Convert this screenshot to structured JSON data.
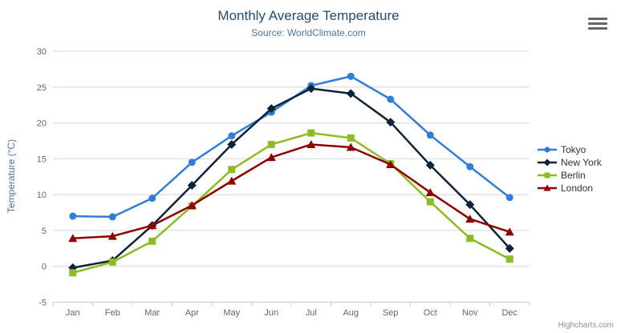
{
  "export_menu": {
    "icon": "hamburger-icon"
  },
  "credits": {
    "label": "Highcharts.com"
  },
  "chart_data": {
    "type": "line",
    "title": "Monthly Average Temperature",
    "subtitle": "Source: WorldClimate.com",
    "categories": [
      "Jan",
      "Feb",
      "Mar",
      "Apr",
      "May",
      "Jun",
      "Jul",
      "Aug",
      "Sep",
      "Oct",
      "Nov",
      "Dec"
    ],
    "xlabel": "",
    "ylabel": "Temperature (°C)",
    "ylim": [
      -5,
      30
    ],
    "ytick_step": 5,
    "grid": true,
    "legend_position": "right",
    "series": [
      {
        "name": "Tokyo",
        "color": "#2f7ed8",
        "marker": "circle",
        "values": [
          7.0,
          6.9,
          9.5,
          14.5,
          18.2,
          21.5,
          25.2,
          26.5,
          23.3,
          18.3,
          13.9,
          9.6
        ]
      },
      {
        "name": "New York",
        "color": "#0d233a",
        "marker": "diamond",
        "values": [
          -0.2,
          0.8,
          5.7,
          11.3,
          17.0,
          22.0,
          24.8,
          24.1,
          20.1,
          14.1,
          8.6,
          2.5
        ]
      },
      {
        "name": "Berlin",
        "color": "#8bbc21",
        "marker": "square",
        "values": [
          -0.9,
          0.6,
          3.5,
          8.4,
          13.5,
          17.0,
          18.6,
          17.9,
          14.3,
          9.0,
          3.9,
          1.0
        ]
      },
      {
        "name": "London",
        "color": "#910000",
        "marker": "triangle",
        "values": [
          3.9,
          4.2,
          5.7,
          8.5,
          11.9,
          15.2,
          17.0,
          16.6,
          14.2,
          10.3,
          6.6,
          4.8
        ]
      }
    ],
    "colors": {
      "title": "#274b6d",
      "subtitle": "#4d759e",
      "axis_title": "#4d759e",
      "axis_labels": "#666666",
      "grid_line": "#d8d8d8",
      "axis_line": "#c0d0e0",
      "legend_text": "#333333",
      "credits_text": "#909090",
      "background": "#ffffff"
    }
  }
}
